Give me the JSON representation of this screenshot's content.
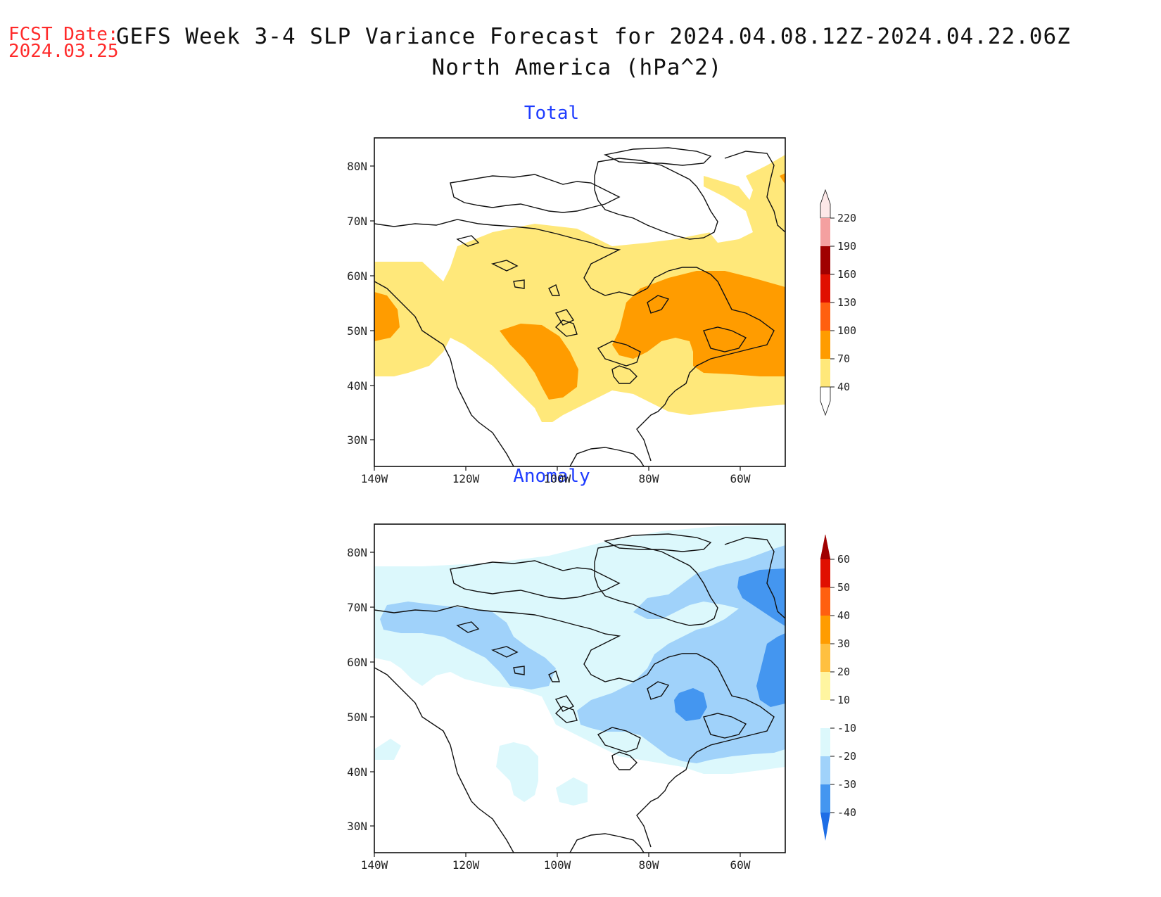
{
  "header": {
    "fcst_label": "FCST Date:",
    "fcst_date": "2024.03.25",
    "title_line1": "GEFS Week 3-4 SLP Variance Forecast for 2024.04.08.12Z-2024.04.22.06Z",
    "title_line2": "North America (hPa^2)"
  },
  "map_extent": {
    "lon": [
      -140,
      -50
    ],
    "lat": [
      25,
      85
    ]
  },
  "lat_ticks": [
    "80N",
    "70N",
    "60N",
    "50N",
    "40N",
    "30N"
  ],
  "lon_ticks": [
    "140W",
    "120W",
    "100W",
    "80W",
    "60W"
  ],
  "panels": [
    {
      "title": "Total",
      "colorbar": {
        "labels": [
          "220",
          "190",
          "160",
          "130",
          "100",
          "70",
          "40"
        ],
        "colors": [
          "#fbd6d6",
          "#f4a0a0",
          "#a00000",
          "#e01000",
          "#ff6010",
          "#ff9c00",
          "#ffe87a"
        ]
      }
    },
    {
      "title": "Anomaly",
      "colorbar": {
        "labels": [
          "60",
          "50",
          "40",
          "30",
          "20",
          "10",
          "-10",
          "-20",
          "-30",
          "-40"
        ],
        "colors": [
          "#a00000",
          "#e01000",
          "#ff6010",
          "#ff9c00",
          "#ffc040",
          "#fff5a0",
          "#ffffff",
          "#dcf8fc",
          "#a0d2fa",
          "#4496f0",
          "#1e6ee6"
        ]
      }
    }
  ]
}
